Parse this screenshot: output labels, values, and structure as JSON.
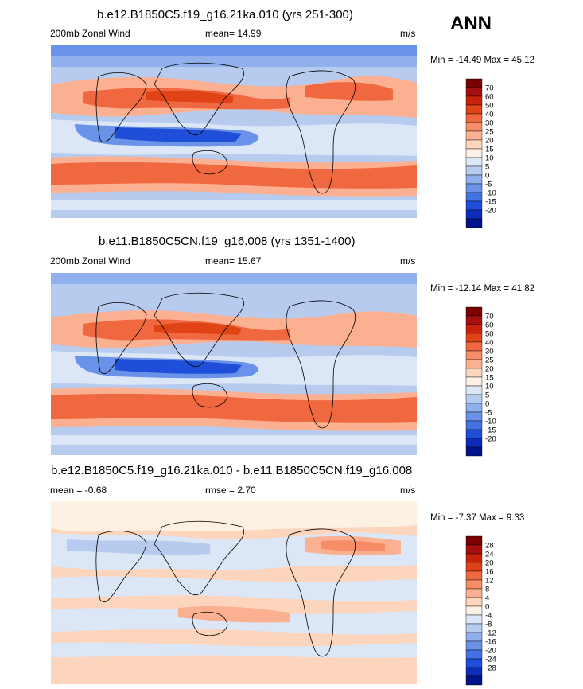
{
  "season": "ANN",
  "panels": [
    {
      "title": "b.e12.B1850C5.f19_g16.21ka.010 (yrs 251-300)",
      "left_label": "200mb Zonal Wind",
      "mean_label": "mean=  14.99",
      "rmse_label": "",
      "units": "m/s",
      "minmax": "Min = -14.49 Max =  45.12",
      "colorbar": {
        "levels": [
          "70",
          "60",
          "50",
          "40",
          "30",
          "25",
          "20",
          "15",
          "10",
          "5",
          "0",
          "-5",
          "-10",
          "-15",
          "-20"
        ],
        "colors": [
          "#7b0000",
          "#a50f0f",
          "#c8230a",
          "#e04416",
          "#f06840",
          "#f78c68",
          "#fbb092",
          "#fdd5bd",
          "#fdf1e4",
          "#dbe6f6",
          "#b7cbef",
          "#8fb0ec",
          "#6992e8",
          "#4372e2",
          "#1f4fd8",
          "#0c2cb7",
          "#01138a"
        ]
      }
    },
    {
      "title": "b.e11.B1850C5CN.f19_g16.008 (yrs 1351-1400)",
      "left_label": "200mb Zonal Wind",
      "mean_label": "mean=  15.67",
      "rmse_label": "",
      "units": "m/s",
      "minmax": "Min = -12.14 Max =  41.82",
      "colorbar": {
        "levels": [
          "70",
          "60",
          "50",
          "40",
          "30",
          "25",
          "20",
          "15",
          "10",
          "5",
          "0",
          "-5",
          "-10",
          "-15",
          "-20"
        ],
        "colors": [
          "#7b0000",
          "#a50f0f",
          "#c8230a",
          "#e04416",
          "#f06840",
          "#f78c68",
          "#fbb092",
          "#fdd5bd",
          "#fdf1e4",
          "#dbe6f6",
          "#b7cbef",
          "#8fb0ec",
          "#6992e8",
          "#4372e2",
          "#1f4fd8",
          "#0c2cb7",
          "#01138a"
        ]
      }
    },
    {
      "title": "b.e12.B1850C5.f19_g16.21ka.010 - b.e11.B1850C5CN.f19_g16.008",
      "left_label": "mean =  -0.68",
      "mean_label": "rmse =   2.70",
      "rmse_label": "",
      "units": "m/s",
      "minmax": "Min =  -7.37 Max =   9.33",
      "colorbar": {
        "levels": [
          "28",
          "24",
          "20",
          "16",
          "12",
          "8",
          "4",
          "0",
          "-4",
          "-8",
          "-12",
          "-16",
          "-20",
          "-24",
          "-28"
        ],
        "colors": [
          "#7b0000",
          "#a50f0f",
          "#c8230a",
          "#e04416",
          "#f06840",
          "#f78c68",
          "#fbb092",
          "#fdd5bd",
          "#fdf1e4",
          "#dbe6f6",
          "#b7cbef",
          "#8fb0ec",
          "#6992e8",
          "#4372e2",
          "#1f4fd8",
          "#0c2cb7",
          "#01138a"
        ]
      }
    }
  ],
  "colors": {
    "neg_strong": "#1f4fd8",
    "neg_mid": "#6992e8",
    "neg_light": "#b7cbef",
    "neutral_pos": "#fdf1e4",
    "pos_light": "#fbb092",
    "pos_mid": "#f06840",
    "pos_strong": "#e04416"
  }
}
